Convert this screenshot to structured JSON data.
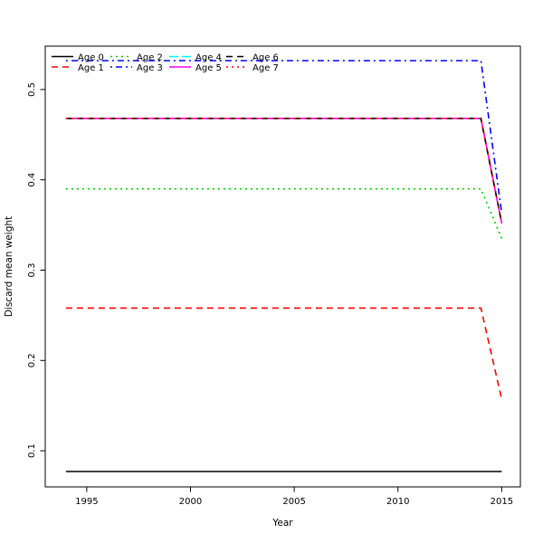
{
  "chart_data": {
    "type": "line",
    "title": "",
    "xlabel": "Year",
    "ylabel": "Discard mean weight",
    "x": [
      1994,
      2014,
      2015
    ],
    "xlim": [
      1993,
      2015.9
    ],
    "ylim": [
      0.06,
      0.548
    ],
    "x_tick_values": [
      1995,
      2000,
      2005,
      2010,
      2015
    ],
    "x_tick_labels": [
      "1995",
      "2000",
      "2005",
      "2010",
      "2015"
    ],
    "y_tick_values": [
      0.1,
      0.2,
      0.3,
      0.4,
      0.5
    ],
    "y_tick_labels": [
      "0.1",
      "0.2",
      "0.3",
      "0.4",
      "0.5"
    ],
    "grid": false,
    "legend_position": "top-left",
    "legend_ncol": 4,
    "series": [
      {
        "name": "Age 0",
        "color": "#000000",
        "linetype": "solid",
        "values": [
          0.077,
          0.077,
          0.077
        ]
      },
      {
        "name": "Age 1",
        "color": "#FF0000",
        "linetype": "dashed",
        "values": [
          0.258,
          0.258,
          0.157
        ]
      },
      {
        "name": "Age 2",
        "color": "#00CD00",
        "linetype": "dotted",
        "values": [
          0.39,
          0.39,
          0.335
        ]
      },
      {
        "name": "Age 3",
        "color": "#0000FF",
        "linetype": "dotdash",
        "values": [
          0.532,
          0.532,
          0.363
        ]
      },
      {
        "name": "Age 4",
        "color": "#00FFFF",
        "linetype": "longdash",
        "values": [
          0.468,
          0.468,
          0.352
        ]
      },
      {
        "name": "Age 5",
        "color": "#FF00FF",
        "linetype": "solid",
        "values": [
          0.468,
          0.468,
          0.352
        ]
      },
      {
        "name": "Age 6",
        "color": "#000000",
        "linetype": "dashed",
        "values": [
          0.468,
          0.468,
          0.352
        ]
      },
      {
        "name": "Age 7",
        "color": "#FF0000",
        "linetype": "dotted",
        "values": [
          0.468,
          0.468,
          0.352
        ]
      }
    ]
  },
  "colors": {
    "background": "#FFFFFF",
    "axis": "#000000",
    "text": "#000000"
  }
}
